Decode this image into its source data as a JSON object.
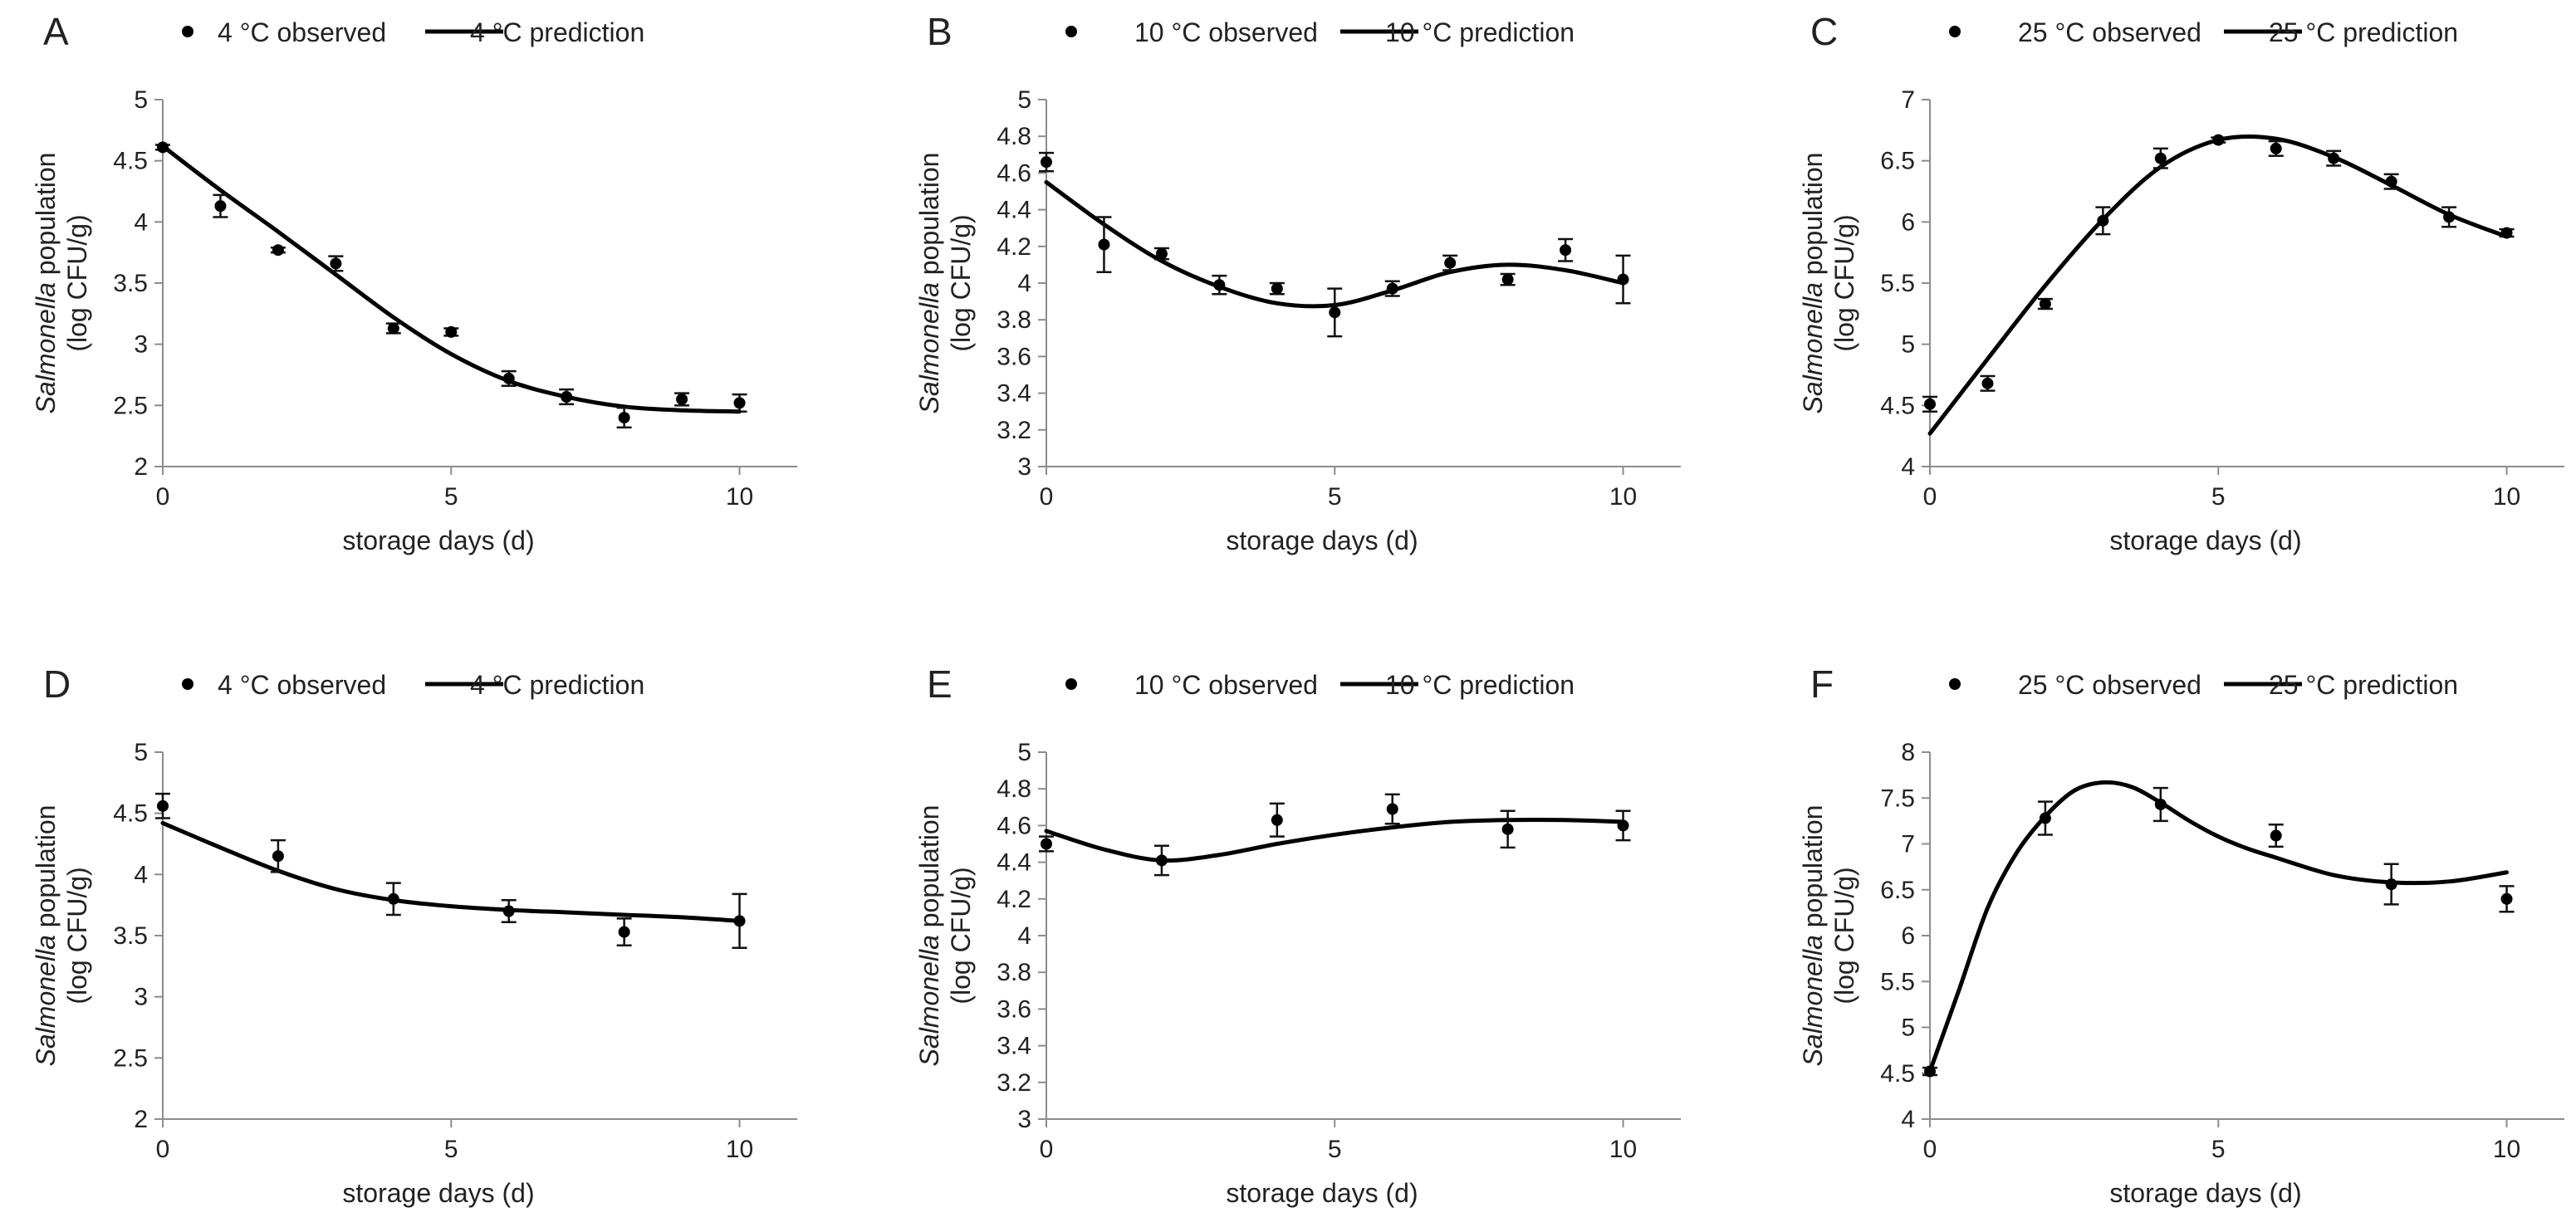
{
  "chart_data": [
    {
      "panel": "A",
      "type": "scatter",
      "legend": {
        "observed": "4 °C observed",
        "prediction": "4 °C prediction"
      },
      "xlabel": "storage days (d)",
      "ylabel_italic": "Salmonella",
      "ylabel_rest": " population",
      "ylabel_unit": "(log CFU/g)",
      "xlim": [
        0,
        11
      ],
      "xticks": [
        0,
        5,
        10
      ],
      "ylim": [
        2,
        5
      ],
      "yticks": [
        2,
        2.5,
        3,
        3.5,
        4,
        4.5,
        5
      ],
      "observed": {
        "x": [
          0,
          1,
          2,
          3,
          4,
          5,
          6,
          7,
          8,
          9,
          10
        ],
        "y": [
          4.61,
          4.13,
          3.77,
          3.66,
          3.13,
          3.1,
          2.72,
          2.57,
          2.4,
          2.55,
          2.52
        ],
        "err": [
          0.02,
          0.09,
          0.02,
          0.06,
          0.04,
          0.03,
          0.06,
          0.06,
          0.08,
          0.05,
          0.07
        ]
      },
      "prediction": {
        "x": [
          0,
          1,
          2,
          3,
          4,
          5,
          6,
          7,
          8,
          9,
          10
        ],
        "y": [
          4.62,
          4.26,
          3.92,
          3.57,
          3.22,
          2.92,
          2.7,
          2.57,
          2.49,
          2.46,
          2.45
        ]
      }
    },
    {
      "panel": "B",
      "type": "scatter",
      "legend": {
        "observed": "10 °C observed",
        "prediction": "10 °C prediction"
      },
      "xlabel": "storage days (d)",
      "ylabel_italic": "Salmonella",
      "ylabel_rest": " population",
      "ylabel_unit": "(log CFU/g)",
      "xlim": [
        0,
        11
      ],
      "xticks": [
        0,
        5,
        10
      ],
      "ylim": [
        3,
        5
      ],
      "yticks": [
        3,
        3.2,
        3.4,
        3.6,
        3.8,
        4,
        4.2,
        4.4,
        4.6,
        4.8,
        5
      ],
      "observed": {
        "x": [
          0,
          1,
          2,
          3,
          4,
          5,
          6,
          7,
          8,
          9,
          10
        ],
        "y": [
          4.66,
          4.21,
          4.16,
          3.99,
          3.97,
          3.84,
          3.97,
          4.11,
          4.02,
          4.18,
          4.02
        ],
        "err": [
          0.05,
          0.15,
          0.03,
          0.05,
          0.03,
          0.13,
          0.04,
          0.04,
          0.03,
          0.06,
          0.13
        ]
      },
      "prediction": {
        "x": [
          0,
          1,
          2,
          3,
          4,
          5,
          6,
          7,
          8,
          9,
          10
        ],
        "y": [
          4.55,
          4.32,
          4.12,
          3.98,
          3.89,
          3.88,
          3.96,
          4.06,
          4.1,
          4.07,
          4.0
        ]
      }
    },
    {
      "panel": "C",
      "type": "scatter",
      "legend": {
        "observed": "25 °C observed",
        "prediction": "25 °C prediction"
      },
      "xlabel": "storage days (d)",
      "ylabel_italic": "Salmonella",
      "ylabel_rest": " population",
      "ylabel_unit": "(log CFU/g)",
      "xlim": [
        0,
        11
      ],
      "xticks": [
        0,
        5,
        10
      ],
      "ylim": [
        4,
        7
      ],
      "yticks": [
        4,
        4.5,
        5,
        5.5,
        6,
        6.5,
        7
      ],
      "observed": {
        "x": [
          0,
          1,
          2,
          3,
          4,
          5,
          6,
          7,
          8,
          9,
          10
        ],
        "y": [
          4.51,
          4.68,
          5.33,
          6.01,
          6.52,
          6.67,
          6.6,
          6.52,
          6.33,
          6.04,
          5.91
        ],
        "err": [
          0.06,
          0.06,
          0.04,
          0.11,
          0.08,
          0.02,
          0.06,
          0.06,
          0.06,
          0.08,
          0.03
        ]
      },
      "prediction": {
        "x": [
          0,
          1,
          2,
          3,
          4,
          5,
          6,
          7,
          8,
          9,
          10
        ],
        "y": [
          4.27,
          4.88,
          5.48,
          6.02,
          6.45,
          6.67,
          6.68,
          6.53,
          6.3,
          6.06,
          5.88
        ]
      }
    },
    {
      "panel": "D",
      "type": "scatter",
      "legend": {
        "observed": "4 °C observed",
        "prediction": "4 °C prediction"
      },
      "xlabel": "storage days (d)",
      "ylabel_italic": "Salmonella",
      "ylabel_rest": " population",
      "ylabel_unit": "(log CFU/g)",
      "xlim": [
        0,
        11
      ],
      "xticks": [
        0,
        5,
        10
      ],
      "ylim": [
        2,
        5
      ],
      "yticks": [
        2,
        2.5,
        3,
        3.5,
        4,
        4.5,
        5
      ],
      "observed": {
        "x": [
          0,
          2,
          4,
          6,
          8,
          10
        ],
        "y": [
          4.56,
          4.15,
          3.8,
          3.7,
          3.53,
          3.62
        ],
        "err": [
          0.1,
          0.13,
          0.13,
          0.09,
          0.11,
          0.22
        ]
      },
      "prediction": {
        "x": [
          0,
          1,
          2,
          3,
          4,
          5,
          6,
          7,
          8,
          9,
          10
        ],
        "y": [
          4.42,
          4.22,
          4.03,
          3.88,
          3.79,
          3.74,
          3.71,
          3.69,
          3.67,
          3.65,
          3.62
        ]
      }
    },
    {
      "panel": "E",
      "type": "scatter",
      "legend": {
        "observed": "10 °C observed",
        "prediction": "10 °C prediction"
      },
      "xlabel": "storage days (d)",
      "ylabel_italic": "Salmonella",
      "ylabel_rest": " population",
      "ylabel_unit": "(log CFU/g)",
      "xlim": [
        0,
        11
      ],
      "xticks": [
        0,
        5,
        10
      ],
      "ylim": [
        3,
        5
      ],
      "yticks": [
        3,
        3.2,
        3.4,
        3.6,
        3.8,
        4,
        4.2,
        4.4,
        4.6,
        4.8,
        5
      ],
      "observed": {
        "x": [
          0,
          2,
          4,
          6,
          8,
          10
        ],
        "y": [
          4.5,
          4.41,
          4.63,
          4.69,
          4.58,
          4.6
        ],
        "err": [
          0.04,
          0.08,
          0.09,
          0.08,
          0.1,
          0.08
        ]
      },
      "prediction": {
        "x": [
          0,
          1,
          2,
          3,
          4,
          5,
          6,
          7,
          8,
          9,
          10
        ],
        "y": [
          4.57,
          4.47,
          4.41,
          4.44,
          4.5,
          4.55,
          4.59,
          4.62,
          4.63,
          4.63,
          4.62
        ]
      }
    },
    {
      "panel": "F",
      "type": "scatter",
      "legend": {
        "observed": "25 °C observed",
        "prediction": "25 °C prediction"
      },
      "xlabel": "storage days (d)",
      "ylabel_italic": "Salmonella",
      "ylabel_rest": " population",
      "ylabel_unit": "(log CFU/g)",
      "xlim": [
        0,
        11
      ],
      "xticks": [
        0,
        5,
        10
      ],
      "ylim": [
        4,
        8
      ],
      "yticks": [
        4,
        4.5,
        5,
        5.5,
        6,
        6.5,
        7,
        7.5,
        8
      ],
      "observed": {
        "x": [
          0,
          2,
          4,
          6,
          8,
          10
        ],
        "y": [
          4.52,
          7.28,
          7.43,
          7.09,
          6.56,
          6.4
        ],
        "err": [
          0.04,
          0.18,
          0.18,
          0.12,
          0.22,
          0.14
        ]
      },
      "prediction": {
        "x": [
          0,
          0.5,
          1,
          1.5,
          2,
          2.5,
          3,
          3.5,
          4,
          4.5,
          5,
          5.5,
          6,
          7,
          8,
          9,
          10
        ],
        "y": [
          4.52,
          5.4,
          6.3,
          6.9,
          7.3,
          7.58,
          7.67,
          7.62,
          7.45,
          7.25,
          7.08,
          6.95,
          6.85,
          6.66,
          6.58,
          6.59,
          6.69
        ]
      }
    }
  ]
}
